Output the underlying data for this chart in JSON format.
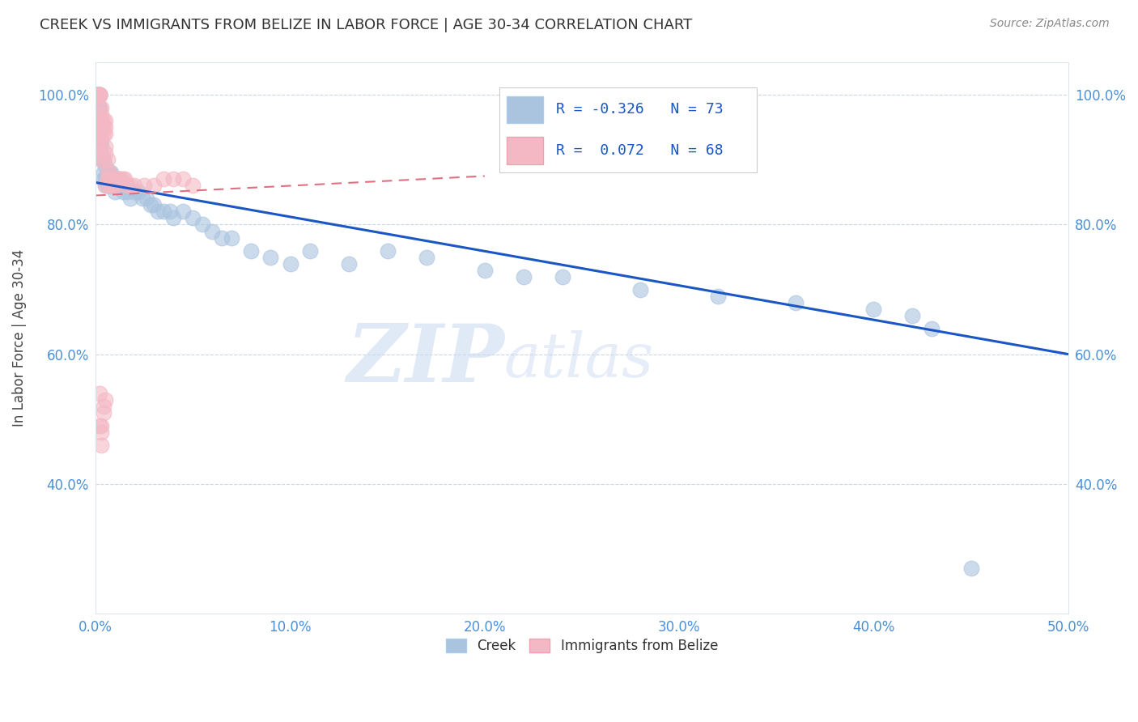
{
  "title": "CREEK VS IMMIGRANTS FROM BELIZE IN LABOR FORCE | AGE 30-34 CORRELATION CHART",
  "source_text": "Source: ZipAtlas.com",
  "ylabel": "In Labor Force | Age 30-34",
  "xlim": [
    0.0,
    0.5
  ],
  "ylim": [
    0.2,
    1.05
  ],
  "xticks": [
    0.0,
    0.1,
    0.2,
    0.3,
    0.4,
    0.5
  ],
  "yticks": [
    0.4,
    0.6,
    0.8,
    1.0
  ],
  "ytick_labels": [
    "40.0%",
    "60.0%",
    "80.0%",
    "100.0%"
  ],
  "xtick_labels": [
    "0.0%",
    "10.0%",
    "20.0%",
    "30.0%",
    "40.0%",
    "50.0%"
  ],
  "creek_color": "#aac4e0",
  "belize_color": "#f4b8c4",
  "creek_line_color": "#1a56c4",
  "belize_line_color": "#e07080",
  "creek_R": -0.326,
  "creek_N": 73,
  "belize_R": 0.072,
  "belize_N": 68,
  "watermark_zip": "ZIP",
  "watermark_atlas": "atlas",
  "legend_creek_label": "Creek",
  "legend_belize_label": "Immigrants from Belize",
  "creek_scatter_x": [
    0.001,
    0.001,
    0.001,
    0.001,
    0.001,
    0.001,
    0.002,
    0.002,
    0.002,
    0.002,
    0.003,
    0.003,
    0.003,
    0.003,
    0.004,
    0.004,
    0.004,
    0.005,
    0.005,
    0.005,
    0.006,
    0.006,
    0.006,
    0.007,
    0.007,
    0.008,
    0.008,
    0.008,
    0.009,
    0.009,
    0.01,
    0.01,
    0.01,
    0.012,
    0.012,
    0.014,
    0.014,
    0.016,
    0.016,
    0.018,
    0.02,
    0.022,
    0.024,
    0.026,
    0.028,
    0.03,
    0.032,
    0.035,
    0.038,
    0.04,
    0.045,
    0.05,
    0.055,
    0.06,
    0.065,
    0.07,
    0.08,
    0.09,
    0.1,
    0.11,
    0.13,
    0.15,
    0.17,
    0.2,
    0.22,
    0.24,
    0.28,
    0.32,
    0.36,
    0.4,
    0.42,
    0.43,
    0.45
  ],
  "creek_scatter_y": [
    1.0,
    1.0,
    1.0,
    1.0,
    1.0,
    0.98,
    1.0,
    1.0,
    1.0,
    0.98,
    0.95,
    0.93,
    0.92,
    0.9,
    0.9,
    0.88,
    0.87,
    0.89,
    0.87,
    0.86,
    0.88,
    0.87,
    0.86,
    0.88,
    0.86,
    0.88,
    0.87,
    0.86,
    0.87,
    0.86,
    0.87,
    0.86,
    0.85,
    0.87,
    0.86,
    0.86,
    0.85,
    0.86,
    0.85,
    0.84,
    0.85,
    0.85,
    0.84,
    0.84,
    0.83,
    0.83,
    0.82,
    0.82,
    0.82,
    0.81,
    0.82,
    0.81,
    0.8,
    0.79,
    0.78,
    0.78,
    0.76,
    0.75,
    0.74,
    0.76,
    0.74,
    0.76,
    0.75,
    0.73,
    0.72,
    0.72,
    0.7,
    0.69,
    0.68,
    0.67,
    0.66,
    0.64,
    0.27
  ],
  "belize_scatter_x": [
    0.001,
    0.001,
    0.001,
    0.001,
    0.001,
    0.001,
    0.001,
    0.001,
    0.001,
    0.001,
    0.002,
    0.002,
    0.002,
    0.002,
    0.002,
    0.002,
    0.002,
    0.002,
    0.002,
    0.002,
    0.003,
    0.003,
    0.003,
    0.003,
    0.003,
    0.003,
    0.004,
    0.004,
    0.004,
    0.004,
    0.005,
    0.005,
    0.005,
    0.005,
    0.005,
    0.005,
    0.006,
    0.006,
    0.006,
    0.007,
    0.007,
    0.008,
    0.008,
    0.009,
    0.01,
    0.01,
    0.011,
    0.012,
    0.013,
    0.014,
    0.015,
    0.016,
    0.018,
    0.02,
    0.025,
    0.03,
    0.035,
    0.04,
    0.045,
    0.05,
    0.002,
    0.003,
    0.004,
    0.004,
    0.005,
    0.002,
    0.003,
    0.003
  ],
  "belize_scatter_y": [
    1.0,
    1.0,
    1.0,
    1.0,
    1.0,
    1.0,
    0.96,
    0.95,
    0.94,
    0.93,
    1.0,
    1.0,
    1.0,
    0.98,
    0.96,
    0.95,
    0.94,
    0.93,
    0.92,
    0.91,
    0.98,
    0.97,
    0.96,
    0.95,
    0.94,
    0.9,
    0.96,
    0.95,
    0.94,
    0.9,
    0.96,
    0.95,
    0.94,
    0.92,
    0.91,
    0.86,
    0.9,
    0.88,
    0.87,
    0.88,
    0.86,
    0.87,
    0.86,
    0.86,
    0.87,
    0.86,
    0.87,
    0.87,
    0.87,
    0.87,
    0.87,
    0.86,
    0.86,
    0.86,
    0.86,
    0.86,
    0.87,
    0.87,
    0.87,
    0.86,
    0.54,
    0.49,
    0.52,
    0.51,
    0.53,
    0.49,
    0.48,
    0.46
  ]
}
